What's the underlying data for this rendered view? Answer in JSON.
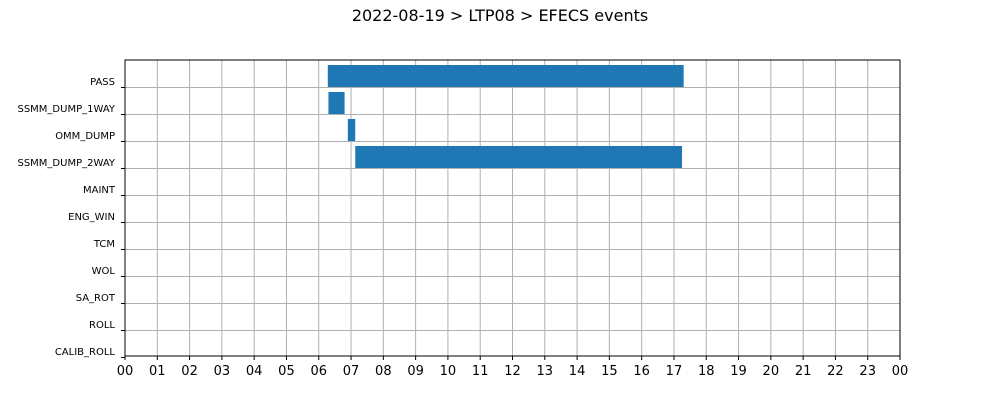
{
  "chart_data": {
    "type": "bar",
    "orientation": "horizontal",
    "title": "2022-08-19 > LTP08 > EFECS events",
    "xlabel": "",
    "ylabel": "",
    "categories": [
      "PASS",
      "SSMM_DUMP_1WAY",
      "OMM_DUMP",
      "SSMM_DUMP_2WAY",
      "MAINT",
      "ENG_WIN",
      "TCM",
      "WOL",
      "SA_ROT",
      "ROLL",
      "CALIB_ROLL"
    ],
    "xlim": [
      0,
      24
    ],
    "x_tick_labels": [
      "00",
      "01",
      "02",
      "03",
      "04",
      "05",
      "06",
      "07",
      "08",
      "09",
      "10",
      "11",
      "12",
      "13",
      "14",
      "15",
      "16",
      "17",
      "18",
      "19",
      "20",
      "21",
      "22",
      "23",
      "00"
    ],
    "grid": true,
    "bar_color": "#1f77b4",
    "events": [
      {
        "category": "PASS",
        "start": 6.28,
        "end": 17.3
      },
      {
        "category": "SSMM_DUMP_1WAY",
        "start": 6.3,
        "end": 6.8
      },
      {
        "category": "OMM_DUMP",
        "start": 6.9,
        "end": 7.13
      },
      {
        "category": "SSMM_DUMP_2WAY",
        "start": 7.13,
        "end": 17.25
      }
    ]
  }
}
